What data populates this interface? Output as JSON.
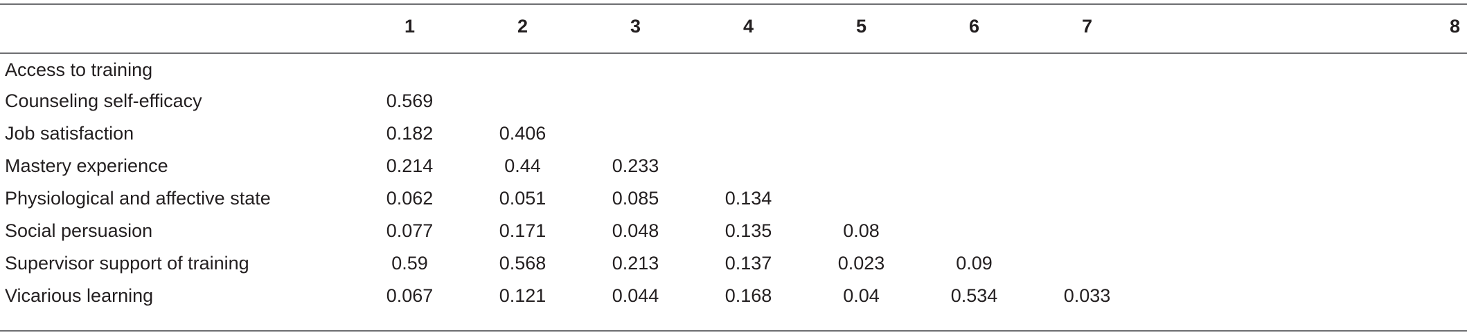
{
  "table": {
    "columns": [
      "",
      "1",
      "2",
      "3",
      "4",
      "5",
      "6",
      "7",
      "8"
    ],
    "rows": [
      {
        "label": "Access to training",
        "values": [
          "",
          "",
          "",
          "",
          "",
          "",
          "",
          ""
        ]
      },
      {
        "label": "Counseling self-efficacy",
        "values": [
          "0.569",
          "",
          "",
          "",
          "",
          "",
          "",
          ""
        ]
      },
      {
        "label": "Job satisfaction",
        "values": [
          "0.182",
          "0.406",
          "",
          "",
          "",
          "",
          "",
          ""
        ]
      },
      {
        "label": "Mastery experience",
        "values": [
          "0.214",
          "0.44",
          "0.233",
          "",
          "",
          "",
          "",
          ""
        ]
      },
      {
        "label": "Physiological and affective state",
        "values": [
          "0.062",
          "0.051",
          "0.085",
          "0.134",
          "",
          "",
          "",
          ""
        ]
      },
      {
        "label": "Social persuasion",
        "values": [
          "0.077",
          "0.171",
          "0.048",
          "0.135",
          "0.08",
          "",
          "",
          ""
        ]
      },
      {
        "label": "Supervisor support of training",
        "values": [
          "0.59",
          "0.568",
          "0.213",
          "0.137",
          "0.023",
          "0.09",
          "",
          ""
        ]
      },
      {
        "label": "Vicarious learning",
        "values": [
          "0.067",
          "0.121",
          "0.044",
          "0.168",
          "0.04",
          "0.534",
          "0.033",
          ""
        ]
      }
    ]
  }
}
